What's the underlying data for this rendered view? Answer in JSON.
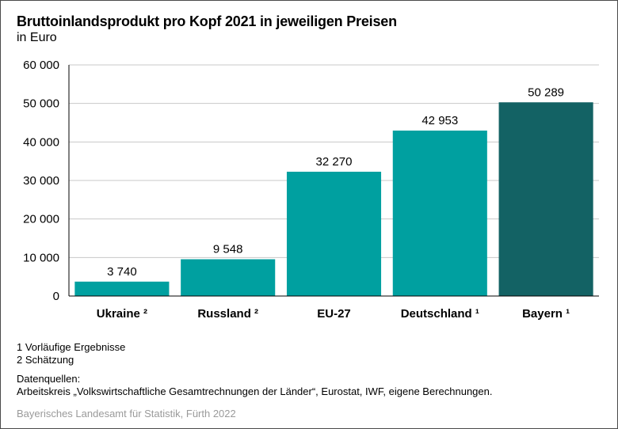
{
  "header": {
    "title": "Bruttoinlandsprodukt pro Kopf 2021 in jeweiligen Preisen",
    "subtitle": "in Euro"
  },
  "colors": {
    "bar_primary": "#00a0a0",
    "bar_highlight": "#136264",
    "gridline": "#c8c8c8",
    "axis": "#000000",
    "credit_text": "#9a9a9a"
  },
  "chart_data": {
    "type": "bar",
    "title": "Bruttoinlandsprodukt pro Kopf 2021 in jeweiligen Preisen",
    "subtitle": "in Euro",
    "xlabel": "",
    "ylabel": "",
    "ylim": [
      0,
      60000
    ],
    "yticks": [
      0,
      10000,
      20000,
      30000,
      40000,
      50000,
      60000
    ],
    "ytick_labels": [
      "0",
      "10 000",
      "20 000",
      "30 000",
      "40 000",
      "50 000",
      "60 000"
    ],
    "grid": true,
    "legend": "none",
    "categories": [
      "Ukraine ²",
      "Russland ²",
      "EU-27",
      "Deutschland ¹",
      "Bayern ¹"
    ],
    "values": [
      3740,
      9548,
      32270,
      42953,
      50289
    ],
    "value_labels": [
      "3 740",
      "9 548",
      "32 270",
      "42 953",
      "50 289"
    ],
    "highlight": [
      false,
      false,
      false,
      false,
      true
    ]
  },
  "notes": {
    "footnote_1": "1 Vorläufige Ergebnisse",
    "footnote_2": "2 Schätzung",
    "sources_label": "Datenquellen:",
    "sources_text": "Arbeitskreis „Volkswirtschaftliche Gesamtrechnungen der Länder“, Eurostat, IWF, eigene Berechnungen.",
    "credit": "Bayerisches Landesamt für Statistik, Fürth 2022"
  }
}
